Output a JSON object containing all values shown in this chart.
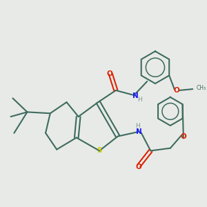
{
  "bg_color": "#e8eae8",
  "bond_color": "#3d6b5e",
  "n_color": "#1a1aff",
  "s_color": "#cccc00",
  "o_color": "#dd2200",
  "h_color": "#7a9a8a",
  "line_width": 1.5,
  "figsize": [
    3.0,
    3.0
  ],
  "dpi": 100,
  "xlim": [
    0,
    10
  ],
  "ylim": [
    0,
    10
  ]
}
